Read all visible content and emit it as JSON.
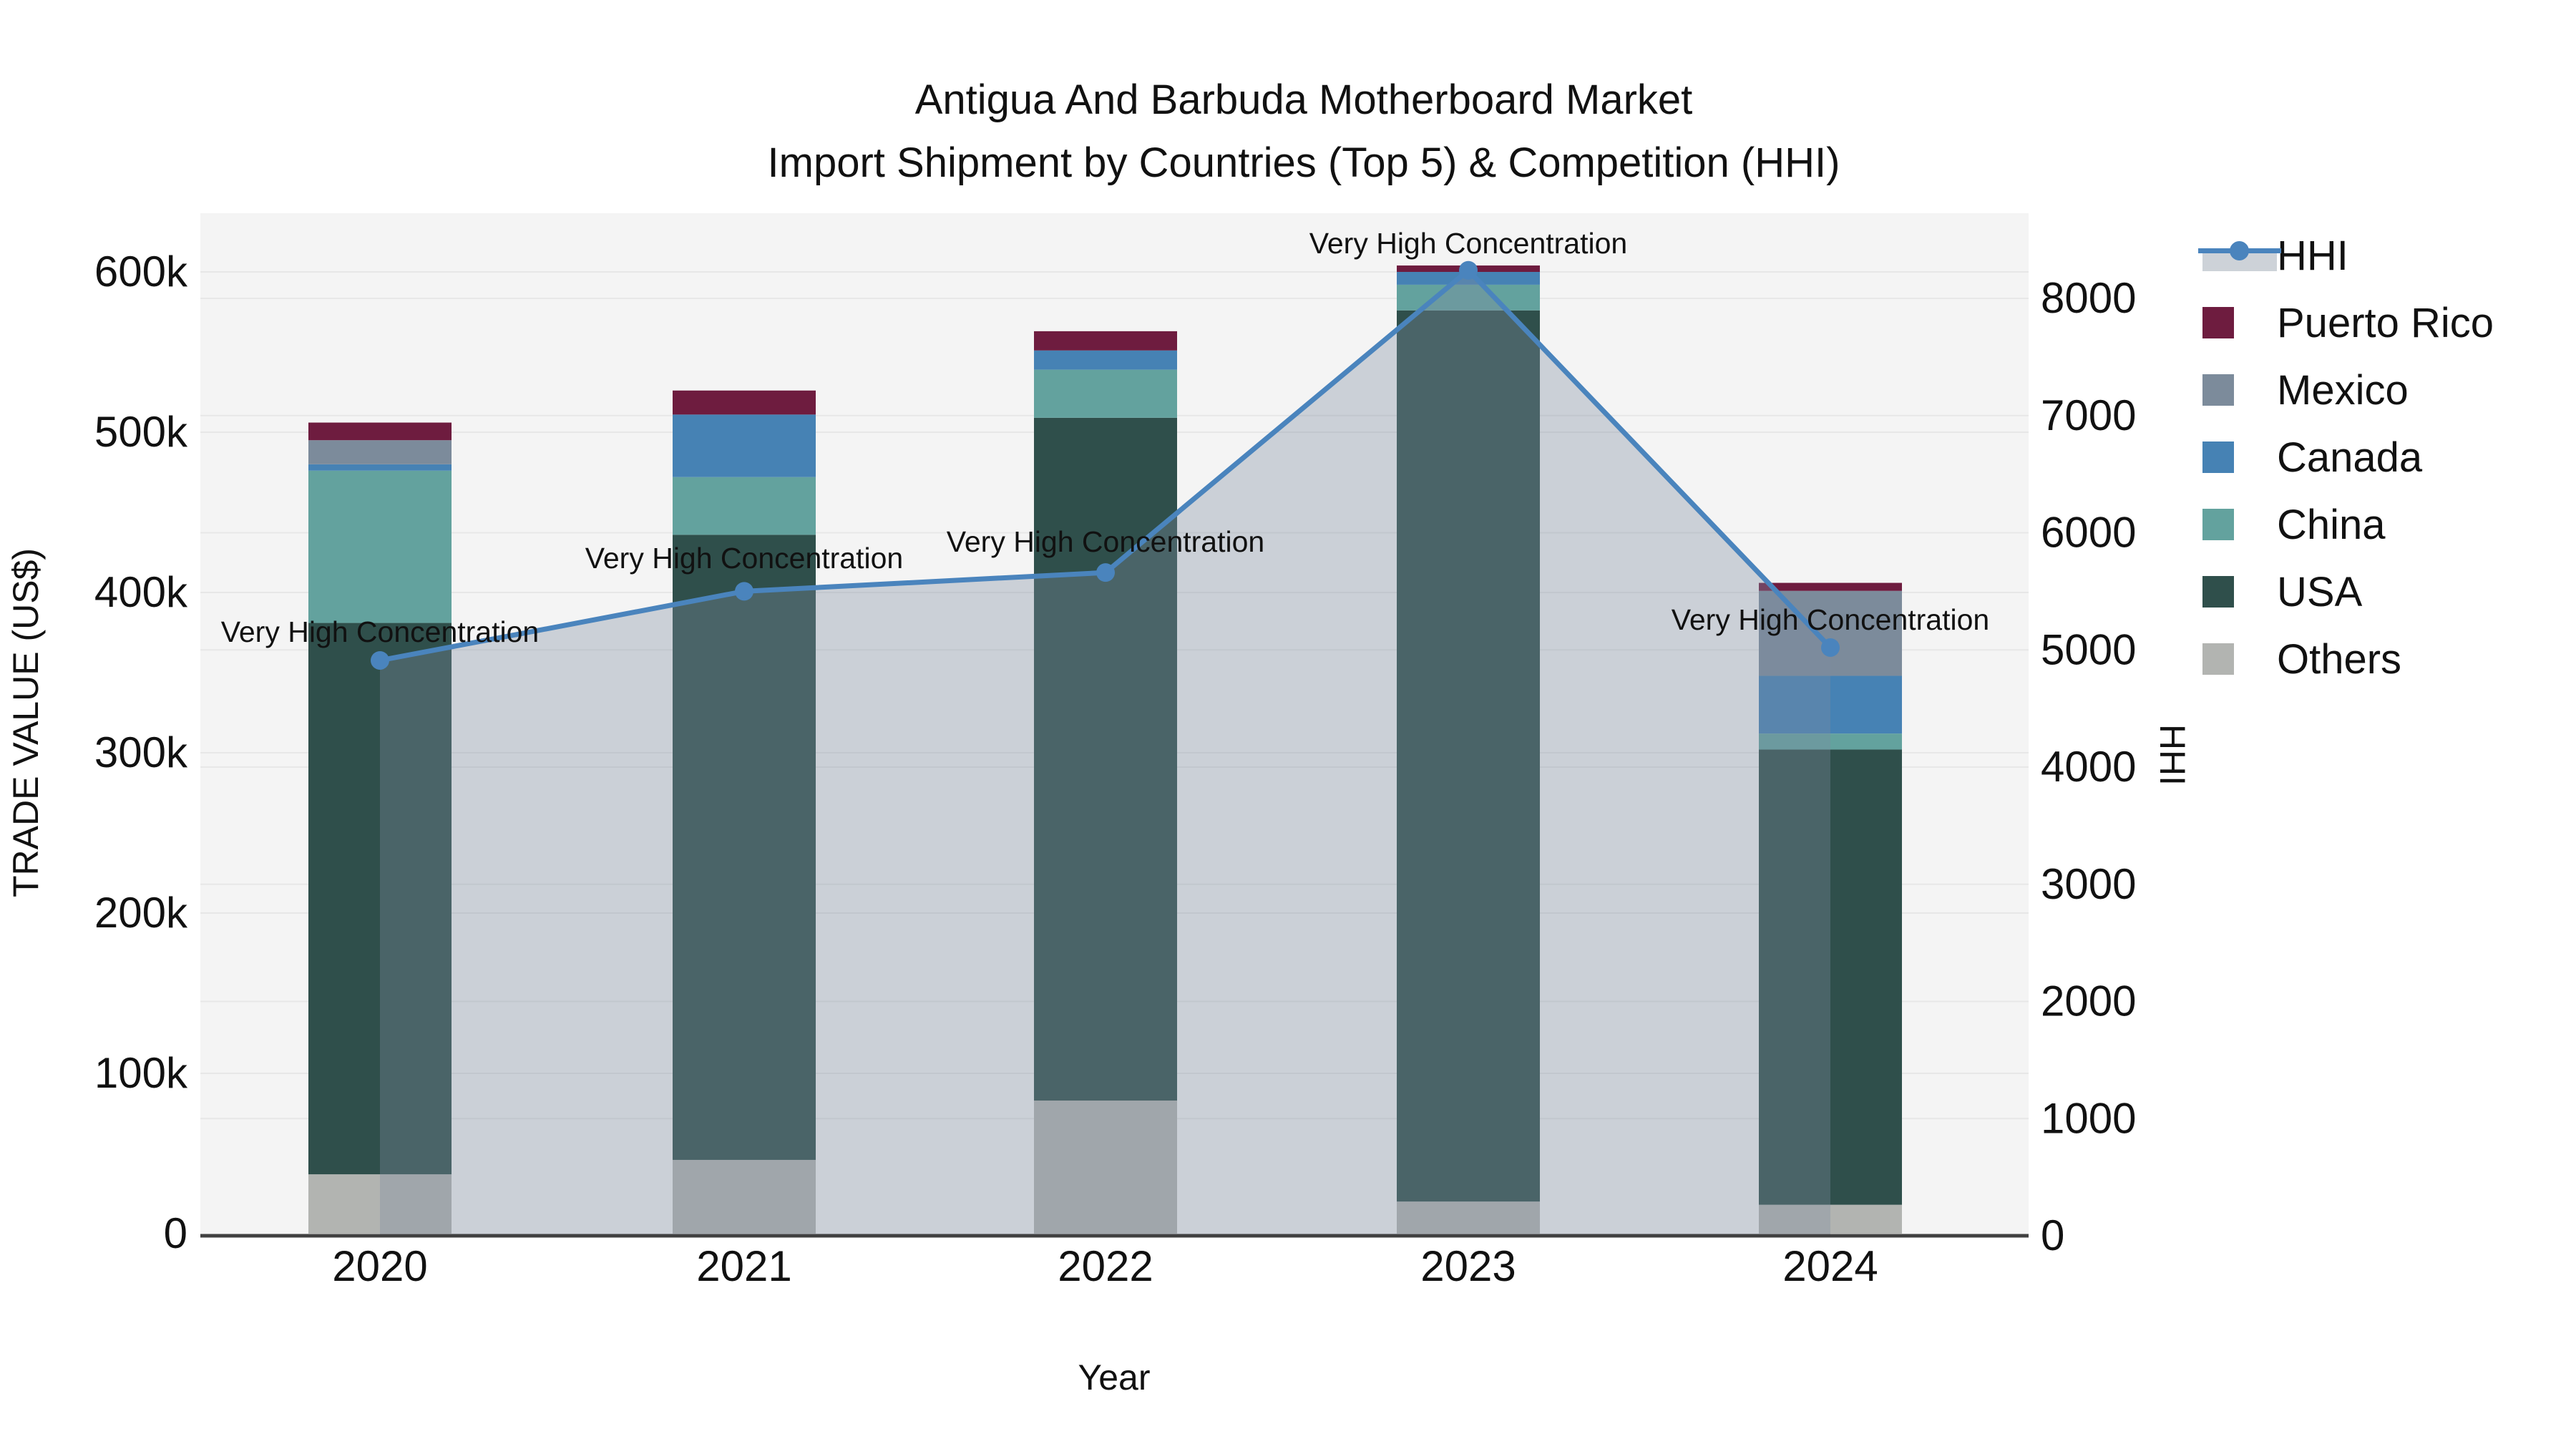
{
  "title": {
    "line1": "Antigua And Barbuda Motherboard Market",
    "line2": "Import Shipment by Countries (Top 5) & Competition (HHI)"
  },
  "axes": {
    "left_title": "TRADE VALUE (US$)",
    "bottom_title": "Year",
    "right_title": "HHI",
    "left_ticks": [
      {
        "value": 0,
        "label": "0"
      },
      {
        "value": 100000,
        "label": "100k"
      },
      {
        "value": 200000,
        "label": "200k"
      },
      {
        "value": 300000,
        "label": "300k"
      },
      {
        "value": 400000,
        "label": "400k"
      },
      {
        "value": 500000,
        "label": "500k"
      },
      {
        "value": 600000,
        "label": "600k"
      }
    ],
    "right_ticks": [
      {
        "value": 0,
        "label": "0"
      },
      {
        "value": 1000,
        "label": "1000"
      },
      {
        "value": 2000,
        "label": "2000"
      },
      {
        "value": 3000,
        "label": "3000"
      },
      {
        "value": 4000,
        "label": "4000"
      },
      {
        "value": 5000,
        "label": "5000"
      },
      {
        "value": 6000,
        "label": "6000"
      },
      {
        "value": 7000,
        "label": "7000"
      },
      {
        "value": 8000,
        "label": "8000"
      }
    ]
  },
  "legend": {
    "items": [
      {
        "label": "HHI",
        "type": "line",
        "color": "#4a84bd"
      },
      {
        "label": "Puerto Rico",
        "type": "box",
        "color": "#6e1c3f"
      },
      {
        "label": "Mexico",
        "type": "box",
        "color": "#7c8b9b"
      },
      {
        "label": "Canada",
        "type": "box",
        "color": "#4682b4"
      },
      {
        "label": "China",
        "type": "box",
        "color": "#63a29e"
      },
      {
        "label": "USA",
        "type": "box",
        "color": "#2f4f4b"
      },
      {
        "label": "Others",
        "type": "box",
        "color": "#b2b4b1"
      }
    ]
  },
  "chart_data": {
    "type": "combo (stacked bar + line, dual y-axis)",
    "categories": [
      "2020",
      "2021",
      "2022",
      "2023",
      "2024"
    ],
    "bar_series_bottom_to_top": [
      {
        "name": "Others",
        "color": "#b2b4b1",
        "values": [
          37000,
          46000,
          83000,
          20000,
          18000
        ]
      },
      {
        "name": "USA",
        "color": "#2f4f4b",
        "values": [
          344000,
          390000,
          426000,
          556000,
          284000
        ]
      },
      {
        "name": "China",
        "color": "#63a29e",
        "values": [
          95000,
          36000,
          30000,
          16000,
          10000
        ]
      },
      {
        "name": "Canada",
        "color": "#4682b4",
        "values": [
          4000,
          39000,
          12000,
          8000,
          36000
        ]
      },
      {
        "name": "Mexico",
        "color": "#7c8b9b",
        "values": [
          15000,
          0,
          0,
          0,
          53000
        ]
      },
      {
        "name": "Puerto Rico",
        "color": "#6e1c3f",
        "values": [
          11000,
          15000,
          12000,
          4000,
          5000
        ]
      }
    ],
    "bar_totals": [
      506000,
      526000,
      563000,
      604000,
      406000
    ],
    "line_series": {
      "name": "HHI",
      "color": "#4a84bd",
      "area_fill": "rgba(125,140,160,0.35)",
      "values": [
        4910,
        5500,
        5660,
        8240,
        5020
      ]
    },
    "annotations": [
      {
        "text": "Very High Concentration",
        "category": "2020"
      },
      {
        "text": "Very High Concentration",
        "category": "2021"
      },
      {
        "text": "Very High Concentration",
        "category": "2022"
      },
      {
        "text": "Very High Concentration",
        "category": "2023"
      },
      {
        "text": "Very High Concentration",
        "category": "2024"
      }
    ],
    "xlabel": "Year",
    "ylabel_left": "TRADE VALUE (US$)",
    "ylabel_right": "HHI",
    "ylim_left": [
      0,
      637000
    ],
    "ylim_right": [
      0,
      8550
    ],
    "grid": true,
    "legend_position": "right"
  },
  "layout_colors": {
    "plot_bg": "#f4f4f4",
    "grid": "#e7e7e7",
    "axis_line": "#404040",
    "text": "#111111"
  }
}
